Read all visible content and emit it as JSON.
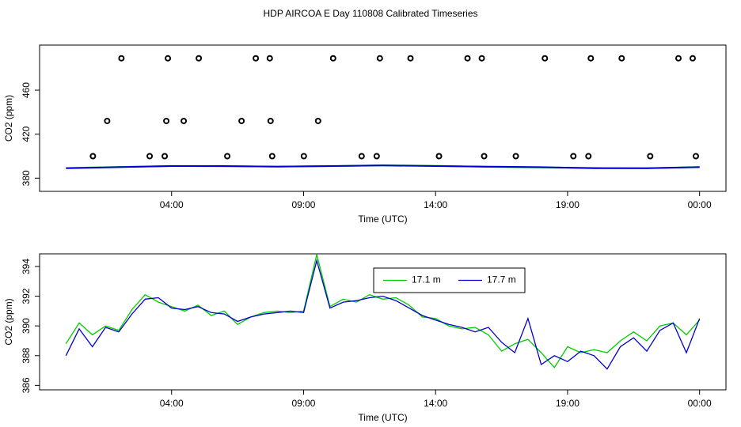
{
  "chart_data": [
    {
      "type": "line",
      "title": "HDP AIRCOA E  Day 110808  Calibrated Timeseries",
      "xlabel": "Time (UTC)",
      "ylabel": "CO2 (ppm)",
      "xlim": [
        -1,
        25
      ],
      "ylim": [
        368,
        501
      ],
      "xticks": [
        {
          "value": 4,
          "label": "04:00"
        },
        {
          "value": 9,
          "label": "09:00"
        },
        {
          "value": 14,
          "label": "14:00"
        },
        {
          "value": 19,
          "label": "19:00"
        },
        {
          "value": 24,
          "label": "00:00"
        }
      ],
      "yticks": [
        380,
        420,
        460
      ],
      "x": [
        0,
        2,
        4,
        6,
        8,
        10,
        12,
        14,
        16,
        18,
        20,
        22,
        24
      ],
      "series": [
        {
          "color": "#00cc00",
          "style": "line",
          "values": [
            389.2,
            390.2,
            391.1,
            390.8,
            390.6,
            390.9,
            391.7,
            391.2,
            390.3,
            389.8,
            389.3,
            389.1,
            390.2
          ]
        },
        {
          "color": "#0000cc",
          "style": "line",
          "values": [
            389,
            390,
            391,
            391,
            390.5,
            391,
            391.5,
            391,
            390.5,
            390,
            389,
            389,
            390
          ]
        },
        {
          "color": "#000000",
          "style": "points",
          "x": [
            2.1,
            3.86,
            5.03,
            7.19,
            7.72,
            10.12,
            11.89,
            13.05,
            15.21,
            15.75,
            18.14,
            19.88,
            21.05,
            23.2,
            23.74,
            1.56,
            3.8,
            4.46,
            6.65,
            7.75,
            9.55,
            1.02,
            3.17,
            3.74,
            6.11,
            7.81,
            9.01,
            11.2,
            11.77,
            14.13,
            15.84,
            17.04,
            19.22,
            19.79,
            22.13,
            23.86
          ],
          "values": [
            489,
            489,
            489,
            489,
            489,
            489,
            489,
            489,
            489,
            489,
            489,
            489,
            489,
            489,
            489,
            432,
            432,
            432,
            432,
            432,
            432,
            400,
            400,
            400,
            400,
            400,
            400,
            400,
            400,
            400,
            400,
            400,
            400,
            400,
            400,
            400
          ]
        }
      ]
    },
    {
      "type": "line",
      "xlabel": "Time (UTC)",
      "ylabel": "CO2 (ppm)",
      "xlim": [
        -1,
        25
      ],
      "ylim": [
        385.7,
        394.85
      ],
      "xticks": [
        {
          "value": 4,
          "label": "04:00"
        },
        {
          "value": 9,
          "label": "09:00"
        },
        {
          "value": 14,
          "label": "14:00"
        },
        {
          "value": 19,
          "label": "19:00"
        },
        {
          "value": 24,
          "label": "00:00"
        }
      ],
      "yticks": [
        386,
        388,
        390,
        392,
        394
      ],
      "legend": "top",
      "x": [
        0,
        0.5,
        1,
        1.5,
        2,
        2.5,
        3,
        3.5,
        4,
        4.5,
        5,
        5.5,
        6,
        6.5,
        7,
        7.5,
        8,
        8.5,
        9,
        9.5,
        10,
        10.5,
        11,
        11.5,
        12,
        12.5,
        13,
        13.5,
        14,
        14.5,
        15,
        15.5,
        16,
        16.5,
        17,
        17.5,
        18,
        18.5,
        19,
        19.5,
        20,
        20.5,
        21,
        21.5,
        22,
        22.5,
        23,
        23.5,
        24
      ],
      "series": [
        {
          "name": "17.1 m",
          "color": "#00cc00",
          "style": "line",
          "values": [
            388.8,
            390.2,
            389.4,
            390.0,
            389.7,
            391.1,
            392.1,
            391.6,
            391.3,
            391.0,
            391.4,
            390.7,
            391.0,
            390.1,
            390.6,
            390.9,
            391.0,
            390.9,
            391.0,
            394.8,
            391.3,
            391.8,
            391.6,
            392.1,
            391.8,
            391.9,
            391.4,
            390.6,
            390.5,
            390.0,
            389.8,
            389.9,
            389.4,
            388.3,
            388.8,
            389.1,
            388.2,
            387.2,
            388.6,
            388.2,
            388.4,
            388.2,
            389.0,
            389.6,
            389.0,
            390.0,
            390.2,
            389.4,
            390.4
          ]
        },
        {
          "name": "17.7 m",
          "color": "#0000cc",
          "style": "line",
          "values": [
            388.0,
            389.8,
            388.6,
            389.9,
            389.6,
            390.8,
            391.8,
            391.9,
            391.2,
            391.1,
            391.3,
            390.9,
            390.8,
            390.3,
            390.6,
            390.8,
            390.9,
            391.0,
            390.9,
            394.4,
            391.2,
            391.6,
            391.7,
            391.9,
            392.0,
            391.7,
            391.2,
            390.7,
            390.4,
            390.1,
            389.9,
            389.6,
            389.9,
            388.9,
            388.2,
            390.5,
            387.4,
            388.0,
            387.6,
            388.3,
            388.0,
            387.1,
            388.6,
            389.2,
            388.3,
            389.7,
            390.2,
            388.2,
            390.5
          ]
        }
      ]
    }
  ]
}
